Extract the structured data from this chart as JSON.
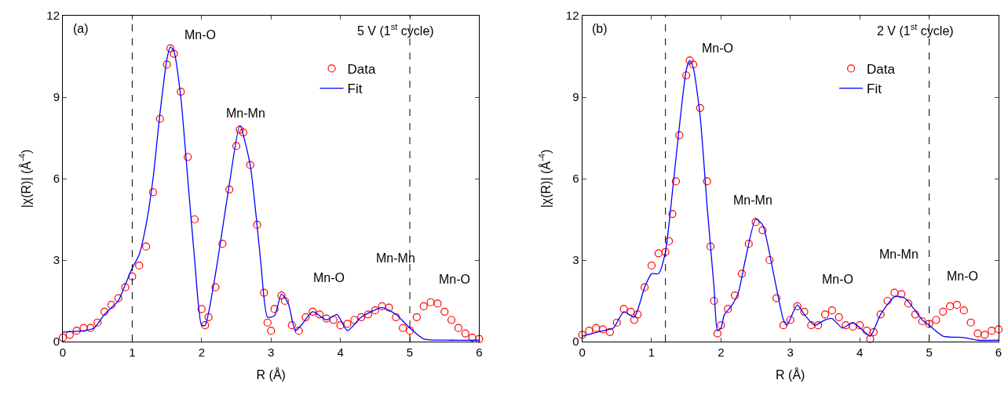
{
  "chart_data": [
    {
      "type": "scatter",
      "xlabel": "R (Å)",
      "ylabel": "|χ(R)| (Å$^{-4}$)",
      "xlim": [
        0,
        6
      ],
      "xticks": [
        0,
        1,
        2,
        3,
        4,
        5,
        6
      ],
      "ylim": [
        0,
        12
      ],
      "yticks": [
        0,
        3,
        6,
        9,
        12
      ],
      "legend": "top right",
      "annotations": [
        "(a)",
        "5 V (1$^{st}$ cycle)",
        "Mn-O",
        "Mn-Mn",
        "Mn-O",
        "Mn-Mn",
        "Mn-O"
      ],
      "ref_lines": [
        {
          "axis": "x",
          "value": 1,
          "label": null,
          "color": "#000000",
          "line_style": "dashed"
        },
        {
          "axis": "x",
          "value": 5,
          "label": null,
          "color": "#000000",
          "line_style": "dashed"
        }
      ],
      "series": [
        {
          "name": "Data",
          "marker": "circle",
          "color": "#ff0000",
          "x": [
            0,
            0.1,
            0.2,
            0.3,
            0.4,
            0.5,
            0.6,
            0.7,
            0.8,
            0.9,
            1.0,
            1.1,
            1.2,
            1.3,
            1.4,
            1.5,
            1.55,
            1.6,
            1.7,
            1.8,
            1.9,
            2.0,
            2.05,
            2.1,
            2.2,
            2.3,
            2.4,
            2.5,
            2.55,
            2.6,
            2.7,
            2.8,
            2.9,
            2.95,
            3.0,
            3.05,
            3.15,
            3.2,
            3.3,
            3.4,
            3.5,
            3.6,
            3.7,
            3.8,
            3.9,
            4.0,
            4.1,
            4.2,
            4.3,
            4.4,
            4.5,
            4.6,
            4.7,
            4.8,
            4.9,
            5.0,
            5.1,
            5.2,
            5.3,
            5.4,
            5.5,
            5.6,
            5.7,
            5.8,
            5.9,
            6.0
          ],
          "values": [
            0.15,
            0.25,
            0.4,
            0.5,
            0.5,
            0.7,
            1.1,
            1.35,
            1.6,
            2.0,
            2.4,
            2.8,
            3.5,
            5.5,
            8.2,
            10.2,
            10.8,
            10.6,
            9.2,
            6.8,
            4.5,
            1.2,
            0.6,
            0.9,
            2.0,
            3.6,
            5.6,
            7.2,
            7.8,
            7.7,
            6.5,
            4.3,
            1.8,
            0.7,
            0.4,
            1.2,
            1.7,
            1.5,
            0.6,
            0.4,
            0.9,
            1.1,
            1.0,
            0.85,
            0.8,
            0.6,
            0.65,
            0.8,
            0.9,
            1.0,
            1.15,
            1.3,
            1.25,
            0.9,
            0.5,
            0.4,
            0.9,
            1.3,
            1.45,
            1.4,
            1.1,
            0.8,
            0.5,
            0.3,
            0.15,
            0.1
          ]
        },
        {
          "name": "Fit",
          "type": "line",
          "marker": "none",
          "line_style": "solid",
          "color": "#0000ff",
          "x": [
            0,
            0.3,
            0.45,
            0.6,
            0.7,
            0.8,
            0.9,
            1.0,
            1.1,
            1.2,
            1.3,
            1.4,
            1.5,
            1.55,
            1.6,
            1.7,
            1.8,
            1.9,
            2.0,
            2.05,
            2.2,
            2.4,
            2.55,
            2.7,
            2.85,
            2.95,
            3.05,
            3.15,
            3.25,
            3.35,
            3.45,
            3.6,
            3.8,
            3.95,
            4.1,
            4.3,
            4.6,
            4.8,
            5.0,
            5.2,
            5.6,
            6.0
          ],
          "values": [
            0.35,
            0.4,
            0.5,
            1.0,
            1.25,
            1.5,
            2.1,
            2.7,
            3.2,
            4.3,
            6.0,
            8.4,
            10.4,
            10.85,
            10.7,
            9.0,
            6.0,
            3.0,
            0.6,
            0.6,
            2.5,
            5.8,
            7.95,
            6.5,
            3.0,
            0.9,
            0.95,
            1.75,
            1.4,
            0.4,
            0.65,
            1.1,
            0.8,
            1.0,
            0.4,
            0.9,
            1.25,
            1.0,
            0.5,
            0.1,
            0.05,
            0.05
          ]
        }
      ]
    },
    {
      "type": "scatter",
      "xlabel": "R (Å)",
      "ylabel": "|χ(R)| (Å$^{-4}$)",
      "xlim": [
        0,
        6
      ],
      "xticks": [
        0,
        1,
        2,
        3,
        4,
        5,
        6
      ],
      "ylim": [
        0,
        12
      ],
      "yticks": [
        0,
        3,
        6,
        9,
        12
      ],
      "legend": "top right",
      "annotations": [
        "(b)",
        "2 V (1$^{st}$ cycle)",
        "Mn-O",
        "Mn-Mn",
        "Mn-O",
        "Mn-Mn",
        "Mn-O"
      ],
      "ref_lines": [
        {
          "axis": "x",
          "value": 1.2,
          "label": null,
          "color": "#000000",
          "line_style": "dashed"
        },
        {
          "axis": "x",
          "value": 5,
          "label": null,
          "color": "#000000",
          "line_style": "dashed"
        }
      ],
      "series": [
        {
          "name": "Data",
          "marker": "circle",
          "color": "#ff0000",
          "x": [
            0,
            0.1,
            0.2,
            0.3,
            0.4,
            0.5,
            0.6,
            0.7,
            0.75,
            0.8,
            0.9,
            1.0,
            1.1,
            1.2,
            1.25,
            1.3,
            1.35,
            1.4,
            1.5,
            1.55,
            1.6,
            1.7,
            1.8,
            1.85,
            1.9,
            1.95,
            2.0,
            2.1,
            2.2,
            2.3,
            2.4,
            2.5,
            2.6,
            2.7,
            2.8,
            2.9,
            3.0,
            3.1,
            3.2,
            3.3,
            3.4,
            3.5,
            3.6,
            3.7,
            3.8,
            3.9,
            4.0,
            4.1,
            4.15,
            4.2,
            4.3,
            4.4,
            4.5,
            4.6,
            4.7,
            4.8,
            4.9,
            5.0,
            5.1,
            5.2,
            5.3,
            5.4,
            5.5,
            5.6,
            5.7,
            5.8,
            5.9,
            6.0
          ],
          "values": [
            0.25,
            0.4,
            0.5,
            0.45,
            0.35,
            0.7,
            1.2,
            1.1,
            0.8,
            1.0,
            2.0,
            2.8,
            3.25,
            3.3,
            3.7,
            4.7,
            5.9,
            7.6,
            9.8,
            10.35,
            10.2,
            8.6,
            5.9,
            3.5,
            1.5,
            0.3,
            0.6,
            1.2,
            1.7,
            2.5,
            3.6,
            4.4,
            4.1,
            3.0,
            1.6,
            0.6,
            0.8,
            1.3,
            1.1,
            0.6,
            0.6,
            1.0,
            1.15,
            0.9,
            0.6,
            0.55,
            0.6,
            0.4,
            0.1,
            0.35,
            1.0,
            1.5,
            1.8,
            1.75,
            1.4,
            1.0,
            0.75,
            0.65,
            0.8,
            1.1,
            1.3,
            1.35,
            1.15,
            0.7,
            0.3,
            0.25,
            0.4,
            0.45
          ]
        },
        {
          "name": "Fit",
          "type": "line",
          "marker": "none",
          "line_style": "solid",
          "color": "#0000ff",
          "x": [
            0,
            0.3,
            0.45,
            0.6,
            0.75,
            0.9,
            1.0,
            1.1,
            1.2,
            1.3,
            1.4,
            1.5,
            1.55,
            1.6,
            1.7,
            1.8,
            1.9,
            1.95,
            2.0,
            2.05,
            2.15,
            2.25,
            2.35,
            2.5,
            2.6,
            2.75,
            2.9,
            2.95,
            3.1,
            3.2,
            3.35,
            3.5,
            3.6,
            3.75,
            3.9,
            4.05,
            4.15,
            4.3,
            4.5,
            4.65,
            4.9,
            5.0,
            5.2,
            5.5,
            5.7,
            6.0
          ],
          "values": [
            0.2,
            0.4,
            0.5,
            1.1,
            0.9,
            2.0,
            2.5,
            2.5,
            3.3,
            5.5,
            7.9,
            10.0,
            10.35,
            10.1,
            8.3,
            5.0,
            2.0,
            0.4,
            0.5,
            1.0,
            1.3,
            1.8,
            3.0,
            4.5,
            4.3,
            2.6,
            0.8,
            0.6,
            1.35,
            1.0,
            0.6,
            0.8,
            0.85,
            0.5,
            0.7,
            0.4,
            0.2,
            1.0,
            1.65,
            1.6,
            0.8,
            0.6,
            0.2,
            0.15,
            0.05,
            0.05
          ]
        }
      ]
    }
  ]
}
